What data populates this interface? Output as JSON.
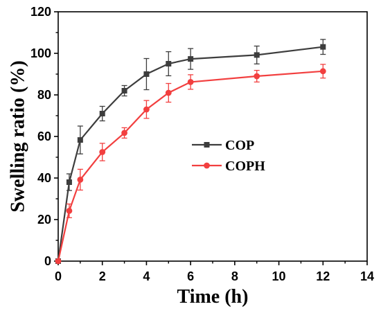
{
  "chart_data": {
    "type": "line",
    "title": "",
    "xlabel": "Time (h)",
    "ylabel": "Swelling ratio (%)",
    "xlim": [
      0,
      14
    ],
    "ylim": [
      0,
      120
    ],
    "x_ticks": [
      "0",
      "2",
      "4",
      "6",
      "8",
      "10",
      "12",
      "14"
    ],
    "y_ticks": [
      "0",
      "20",
      "40",
      "60",
      "80",
      "100",
      "120"
    ],
    "grid": false,
    "legend_position": "center-right",
    "x": [
      0,
      0.5,
      1,
      2,
      3,
      4,
      5,
      6,
      9,
      12
    ],
    "series": [
      {
        "name": "COP",
        "color": "#3d3d3d",
        "marker": "square",
        "values": [
          0,
          38,
          58.3,
          71,
          82,
          90,
          95,
          97.3,
          99.2,
          103.1
        ],
        "errors": [
          0,
          4,
          6.7,
          3.5,
          2.5,
          7.5,
          5.8,
          5,
          4.3,
          3.6
        ]
      },
      {
        "name": "COPH",
        "color": "#f23f3f",
        "marker": "circle",
        "values": [
          0,
          24.2,
          39.2,
          52.5,
          61.7,
          73,
          81,
          86.2,
          89,
          91.4
        ],
        "errors": [
          0,
          3.3,
          5,
          4.2,
          2.5,
          4.3,
          4.5,
          3.5,
          2.8,
          3.3
        ]
      }
    ]
  }
}
